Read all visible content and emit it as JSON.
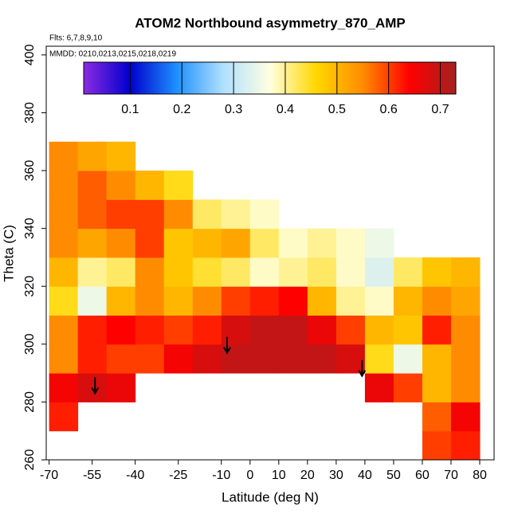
{
  "chart_data": {
    "type": "heatmap",
    "title": "ATOM2 Northbound asymmetry_870_AMP",
    "annotations": [
      "Flts: 6,7,8,9,10",
      "MMDD: 0210,0213,0215,0218,0219"
    ],
    "x_label": "Latitude (deg N)",
    "y_label": "Theta (C)",
    "xlim": [
      -71,
      85
    ],
    "ylim": [
      260,
      403
    ],
    "xticks": [
      -70,
      -55,
      -40,
      -25,
      -10,
      0,
      10,
      20,
      30,
      40,
      50,
      60,
      70,
      80
    ],
    "yticks": [
      260,
      280,
      300,
      320,
      340,
      360,
      380,
      400
    ],
    "x_edges": [
      -70,
      -60,
      -50,
      -40,
      -30,
      -20,
      -10,
      0,
      10,
      20,
      30,
      40,
      50,
      60,
      70,
      80
    ],
    "y_edges": [
      260,
      270,
      280,
      290,
      300,
      310,
      320,
      330,
      340,
      350,
      360,
      370
    ],
    "z": [
      [
        null,
        null,
        null,
        null,
        null,
        null,
        null,
        null,
        null,
        null,
        null,
        null,
        null,
        0.6,
        0.62
      ],
      [
        0.62,
        null,
        null,
        null,
        null,
        null,
        null,
        null,
        null,
        null,
        null,
        null,
        null,
        0.58,
        0.65
      ],
      [
        0.65,
        0.68,
        0.66,
        null,
        null,
        null,
        null,
        null,
        null,
        null,
        null,
        0.66,
        0.6,
        0.5,
        0.55
      ],
      [
        0.55,
        0.62,
        0.6,
        0.6,
        0.65,
        0.68,
        0.7,
        0.7,
        0.7,
        0.7,
        0.68,
        0.45,
        0.35,
        0.5,
        0.55
      ],
      [
        0.55,
        0.62,
        0.64,
        0.62,
        0.6,
        0.62,
        0.68,
        0.7,
        0.7,
        0.66,
        0.6,
        0.5,
        0.48,
        0.62,
        0.55
      ],
      [
        0.45,
        0.35,
        0.5,
        0.55,
        0.5,
        0.55,
        0.6,
        0.62,
        0.64,
        0.5,
        0.4,
        0.38,
        0.5,
        0.55,
        0.52
      ],
      [
        0.5,
        0.4,
        0.42,
        0.55,
        0.48,
        0.44,
        0.42,
        0.38,
        0.4,
        0.42,
        0.38,
        0.33,
        0.42,
        0.48,
        0.5
      ],
      [
        0.55,
        0.52,
        0.55,
        0.6,
        0.48,
        0.5,
        0.52,
        0.42,
        0.38,
        0.4,
        0.38,
        0.35,
        null,
        null,
        null
      ],
      [
        0.55,
        0.58,
        0.6,
        0.6,
        0.55,
        0.42,
        0.4,
        0.38,
        null,
        null,
        null,
        null,
        null,
        null,
        null
      ],
      [
        0.55,
        0.58,
        0.55,
        0.5,
        0.45,
        null,
        null,
        null,
        null,
        null,
        null,
        null,
        null,
        null,
        null
      ],
      [
        0.55,
        0.52,
        0.5,
        null,
        null,
        null,
        null,
        null,
        null,
        null,
        null,
        null,
        null,
        null,
        null
      ]
    ],
    "colors": [
      "#8a2be2",
      "#0000cd",
      "#1e90ff",
      "#b0e0ff",
      "#ffffe0",
      "#ffd700",
      "#ff8c00",
      "#ff0000",
      "#a52020"
    ],
    "clim": [
      0.01,
      0.73
    ],
    "colorbar_ticks": [
      0.1,
      0.2,
      0.3,
      0.4,
      0.5,
      0.6,
      0.7
    ],
    "markers": {
      "x": [
        -54,
        -8,
        39
      ],
      "y": [
        283,
        297,
        289
      ]
    }
  }
}
